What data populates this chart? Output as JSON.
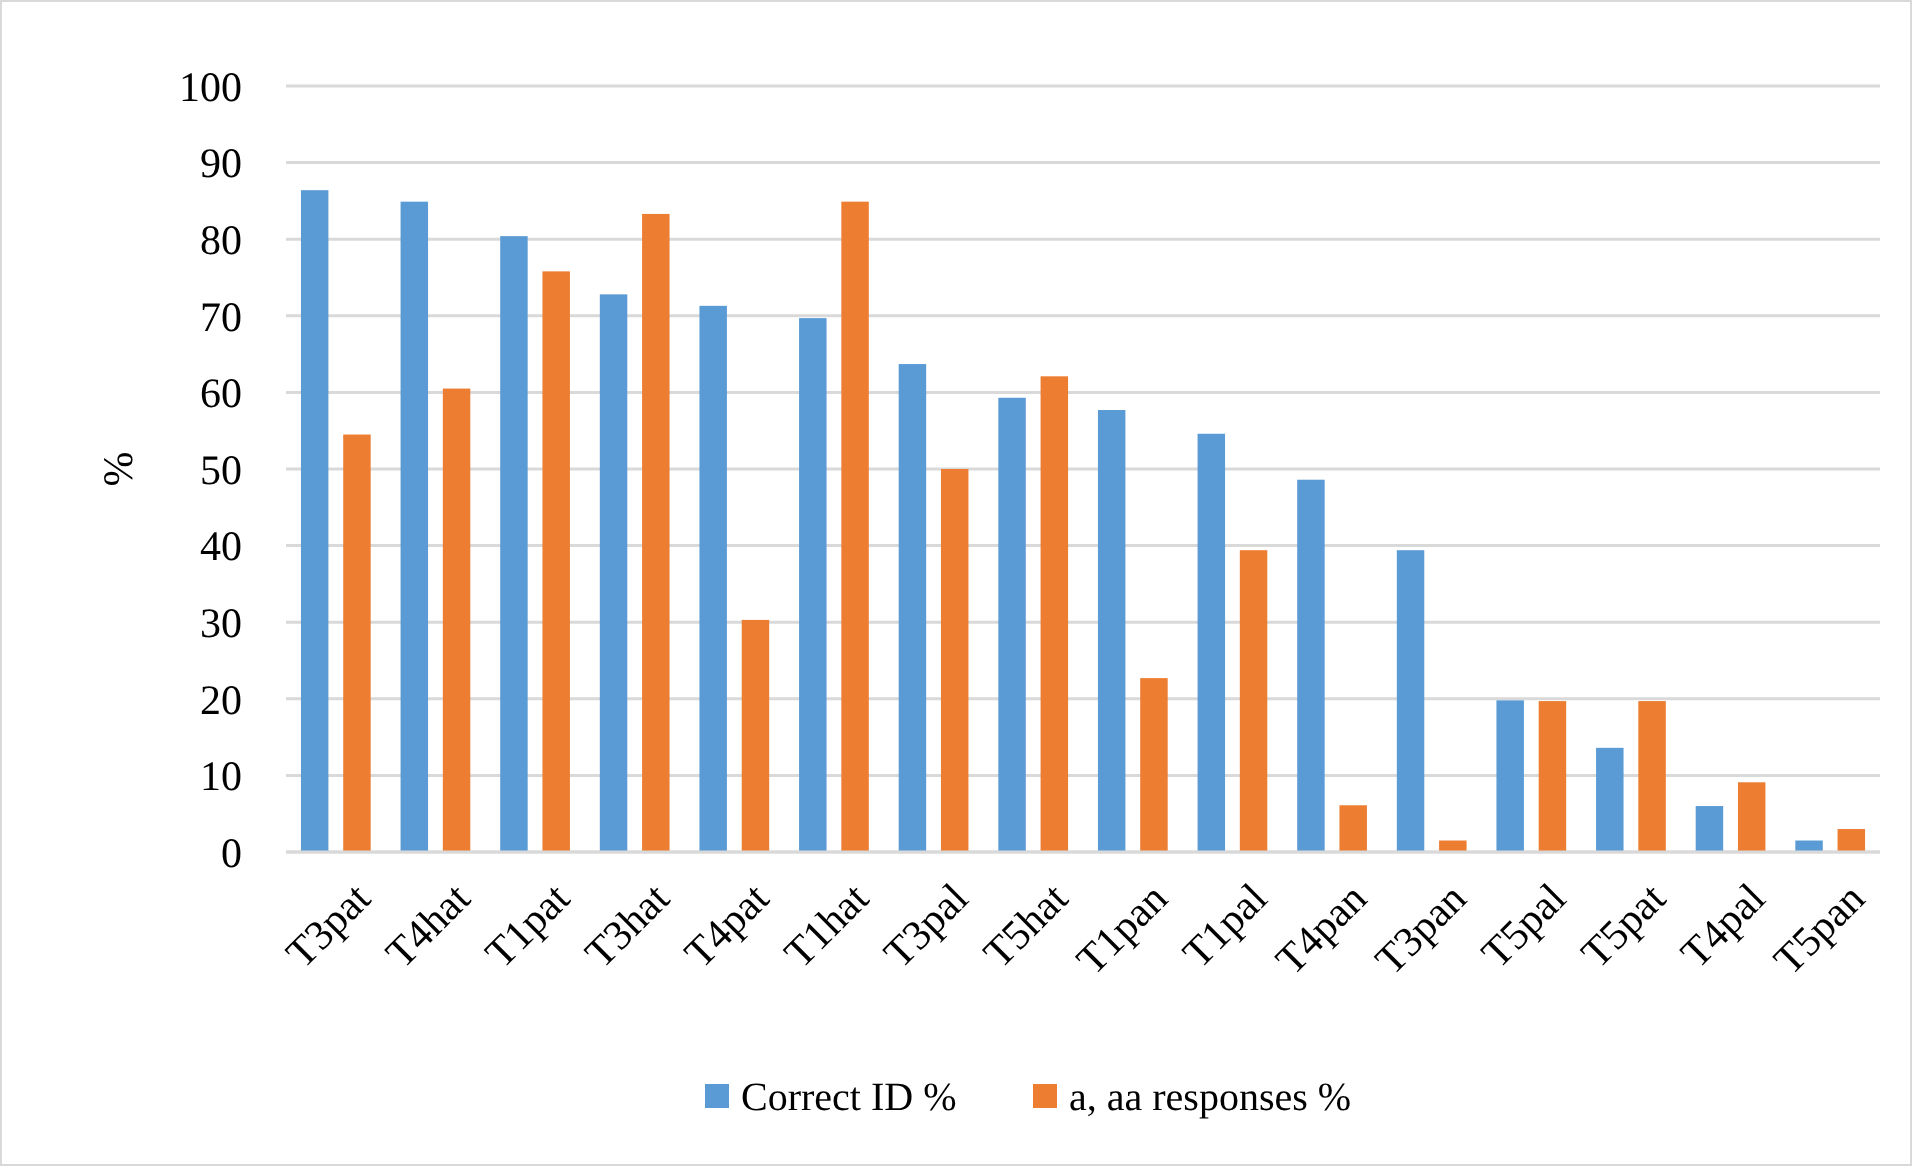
{
  "chart_data": {
    "type": "bar",
    "ylabel": "%",
    "categories": [
      "T3pat",
      "T4hat",
      "T1pat",
      "T3hat",
      "T4pat",
      "T1hat",
      "T3pal",
      "T5hat",
      "T1pan",
      "T1pal",
      "T4pan",
      "T3pan",
      "T5pal",
      "T5pat",
      "T4pal",
      "T5pan"
    ],
    "series": [
      {
        "name": "Correct ID %",
        "color": "#5b9bd5",
        "values": [
          86.4,
          84.9,
          80.4,
          72.8,
          71.3,
          69.7,
          63.7,
          59.3,
          57.7,
          54.6,
          48.6,
          39.4,
          19.8,
          13.6,
          6,
          1.5
        ]
      },
      {
        "name": "a, aa responses %",
        "color": "#ed7d31",
        "values": [
          54.5,
          60.5,
          75.8,
          83.3,
          30.3,
          84.9,
          50,
          62.1,
          22.7,
          39.4,
          6.1,
          1.5,
          19.7,
          19.7,
          9.1,
          3
        ]
      }
    ],
    "ylim": [
      0,
      100
    ],
    "yticks": [
      0,
      10,
      20,
      30,
      40,
      50,
      60,
      70,
      80,
      90,
      100
    ],
    "grid": "y",
    "legend": "bottom"
  }
}
